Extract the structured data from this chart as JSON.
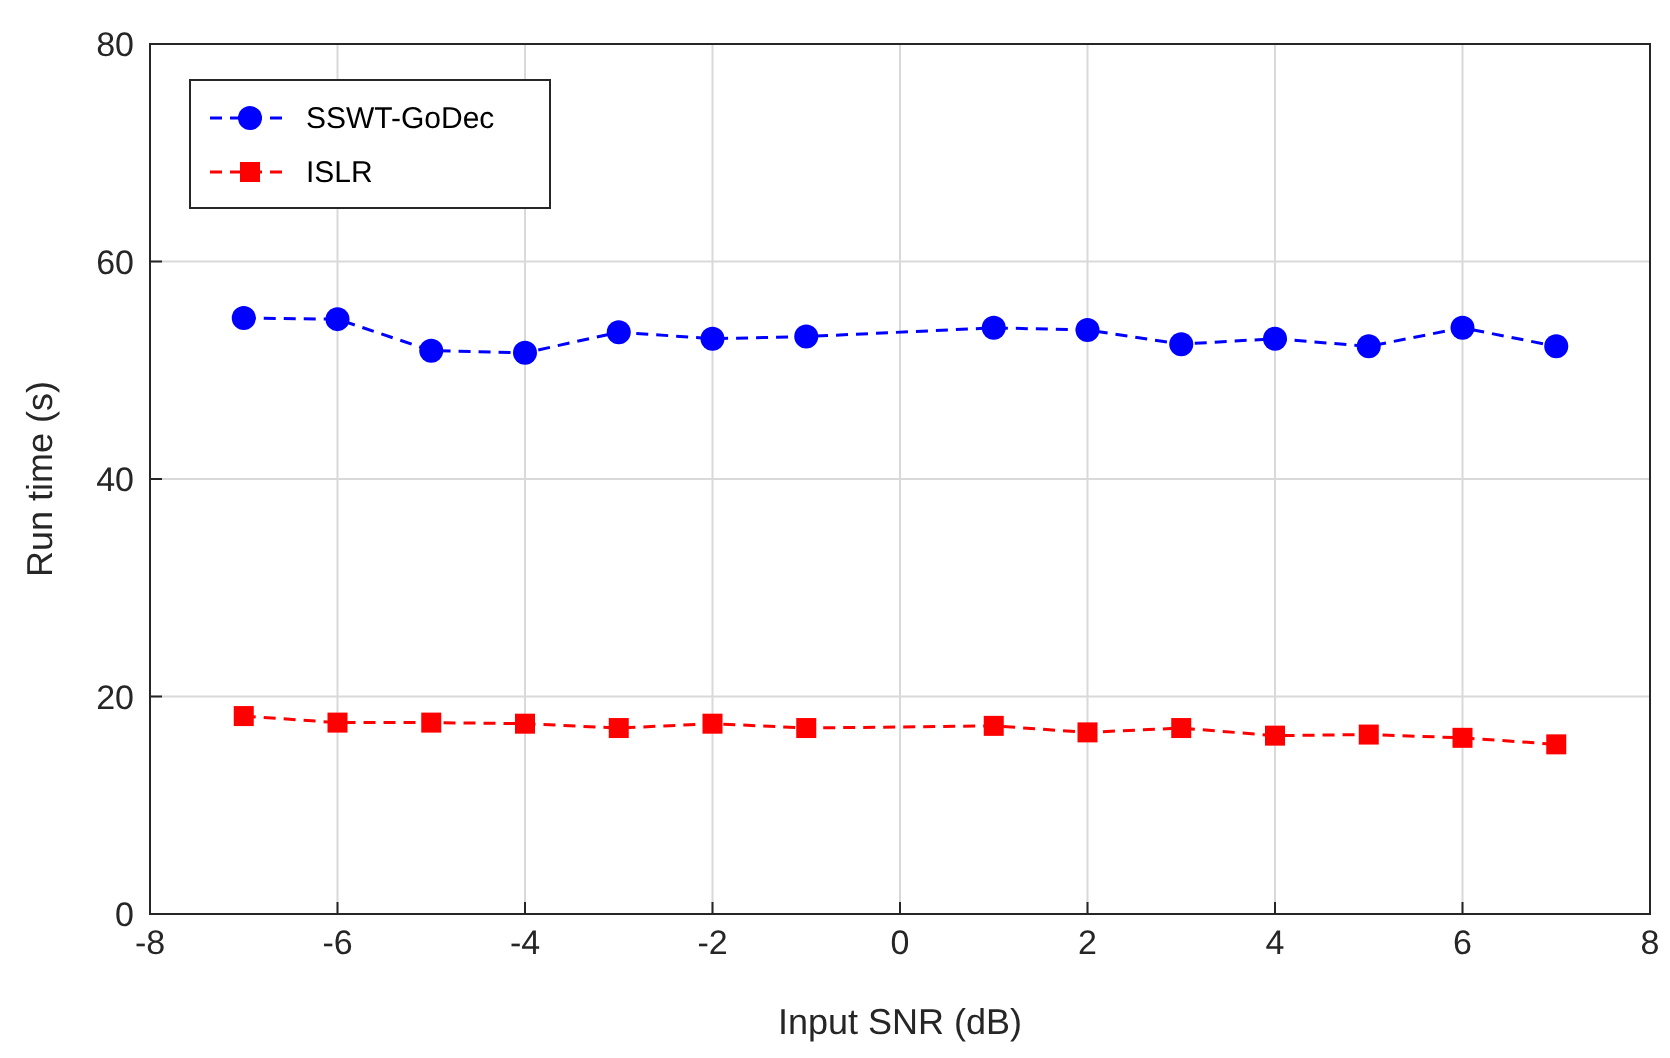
{
  "chart_data": {
    "type": "line",
    "xlabel": "Input SNR (dB)",
    "ylabel": "Run time (s)",
    "x": [
      -7,
      -6,
      -5,
      -4,
      -3,
      -2,
      -1,
      1,
      2,
      3,
      4,
      5,
      6,
      7
    ],
    "xlim": [
      -8,
      8
    ],
    "xticks": [
      -8,
      -6,
      -4,
      -2,
      0,
      2,
      4,
      6,
      8
    ],
    "ylim": [
      0,
      80
    ],
    "yticks": [
      0,
      20,
      40,
      60,
      80
    ],
    "grid": true,
    "legend": "top left",
    "line_style": "dashed",
    "series": [
      {
        "name": "SSWT-GoDec",
        "color": "#0000ff",
        "marker": "circle",
        "values": [
          54.8,
          54.7,
          51.8,
          51.6,
          53.5,
          52.9,
          53.1,
          53.9,
          53.7,
          52.4,
          52.9,
          52.2,
          53.9,
          52.2
        ]
      },
      {
        "name": "ISLR",
        "color": "#ff0000",
        "marker": "square",
        "values": [
          18.2,
          17.6,
          17.6,
          17.5,
          17.1,
          17.5,
          17.1,
          17.3,
          16.7,
          17.1,
          16.4,
          16.5,
          16.2,
          15.6
        ]
      }
    ]
  }
}
